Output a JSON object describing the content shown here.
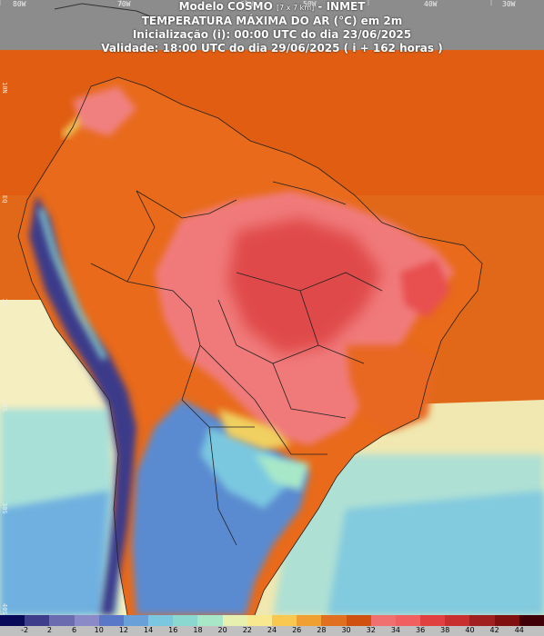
{
  "header": {
    "line1_main": "Modelo COSMO",
    "line1_res": "[7 x 7 km]",
    "line1_org": "- INMET",
    "line2": "TEMPERATURA MÁXIMA DO AR (°C) em 2m",
    "line3": "Inicialização (i): 00:00 UTC do dia 23/06/2025",
    "line4": "Validade: 18:00 UTC do dia 29/06/2025 ( i + 162 horas )"
  },
  "axes": {
    "lon_labels": [
      "80W",
      "70W",
      "60W",
      "50W",
      "40W",
      "30W"
    ],
    "lat_labels": [
      "10N",
      "EQ",
      "10S",
      "20S",
      "30S",
      "40S"
    ]
  },
  "legend": {
    "ticks": [
      "-2",
      "2",
      "6",
      "10",
      "12",
      "14",
      "16",
      "18",
      "20",
      "22",
      "24",
      "26",
      "28",
      "30",
      "32",
      "34",
      "36",
      "38",
      "40",
      "42",
      "44"
    ],
    "colors": [
      "#0a0a5a",
      "#3d3d8c",
      "#6b6bb0",
      "#8a8ac8",
      "#5a78c8",
      "#6aa0d8",
      "#7ac8e0",
      "#8ad8d0",
      "#a8e8c8",
      "#e8f0b0",
      "#f8e890",
      "#f8c850",
      "#f0a030",
      "#e07020",
      "#d05010",
      "#f07070",
      "#f06060",
      "#e04040",
      "#c83030",
      "#a02020",
      "#801010",
      "#400008"
    ]
  },
  "map_colors": {
    "ocean_warm": "#e05a10",
    "ocean_mid": "#e87018",
    "land_hot": "#f07878",
    "land_hottest": "#e04848",
    "andes_cold": "#3a3a8a",
    "south_cool": "#60a0d8",
    "south_sea": "#7ec8e0"
  }
}
